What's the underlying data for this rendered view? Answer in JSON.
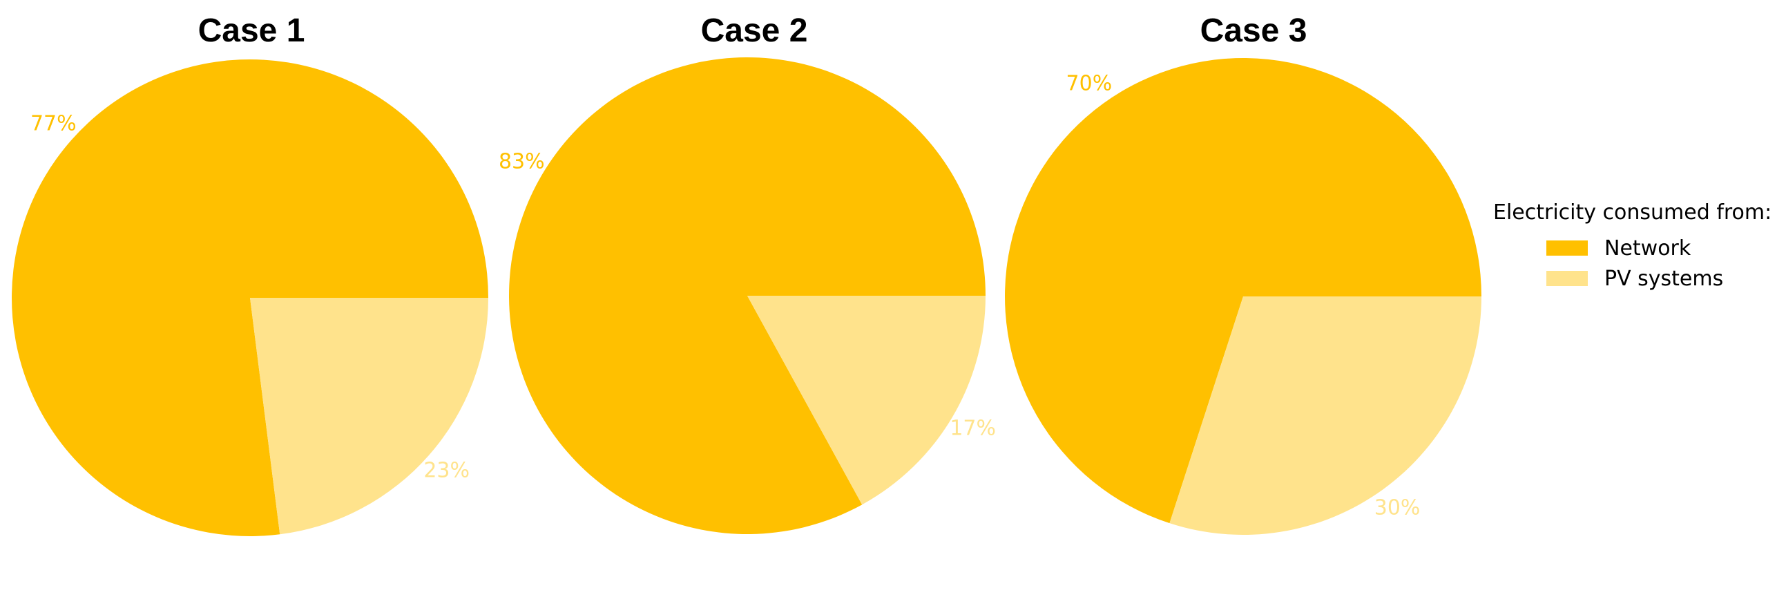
{
  "legend": {
    "title": "Electricity consumed from:",
    "items": [
      {
        "label": "Network",
        "color": "#FFC000"
      },
      {
        "label": "PV systems",
        "color": "#FFE38C"
      }
    ]
  },
  "chart_data": [
    {
      "type": "pie",
      "title": "Case 1",
      "categories": [
        "Network",
        "PV systems"
      ],
      "values": [
        77,
        23
      ],
      "labels": [
        "77%",
        "23%"
      ],
      "colors": [
        "#FFC000",
        "#FFE38C"
      ]
    },
    {
      "type": "pie",
      "title": "Case 2",
      "categories": [
        "Network",
        "PV systems"
      ],
      "values": [
        83,
        17
      ],
      "labels": [
        "83%",
        "17%"
      ],
      "colors": [
        "#FFC000",
        "#FFE38C"
      ]
    },
    {
      "type": "pie",
      "title": "Case 3",
      "categories": [
        "Network",
        "PV systems"
      ],
      "values": [
        70,
        30
      ],
      "labels": [
        "70%",
        "30%"
      ],
      "colors": [
        "#FFC000",
        "#FFE38C"
      ]
    }
  ]
}
